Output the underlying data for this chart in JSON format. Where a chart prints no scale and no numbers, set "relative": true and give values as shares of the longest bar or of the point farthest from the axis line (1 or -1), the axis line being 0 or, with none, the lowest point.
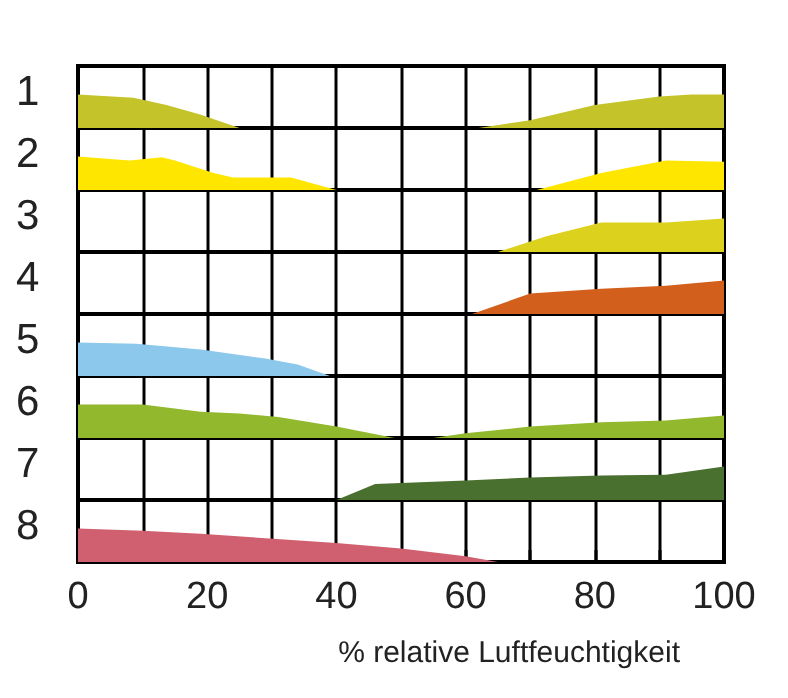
{
  "chart_data": [
    {
      "type": "area",
      "ylabel": "1",
      "relative": true,
      "color": "#c5c32a",
      "x": [
        0,
        8.6,
        13.7,
        18.9,
        25,
        62,
        70,
        80,
        90,
        95,
        100
      ],
      "values": [
        1,
        0.9,
        0.69,
        0.4,
        0,
        0,
        0.23,
        0.69,
        0.94,
        1,
        1
      ],
      "xlim": [
        0,
        100
      ],
      "xticks": [
        0,
        {
          "value": 10,
          "label": null
        },
        20,
        {
          "value": 30,
          "label": null
        },
        40,
        {
          "value": 50,
          "label": null
        },
        60,
        {
          "value": 70,
          "label": null
        },
        80,
        {
          "value": 90,
          "label": null
        },
        100
      ],
      "grid": "x",
      "tick_labels": false
    },
    {
      "type": "area",
      "ylabel": "2",
      "relative": true,
      "color": "#ffe600",
      "x": [
        0,
        8,
        13,
        15,
        21,
        24,
        33,
        40,
        71,
        81,
        91,
        100
      ],
      "values": [
        1,
        0.88,
        0.98,
        0.88,
        0.51,
        0.37,
        0.37,
        0,
        0,
        0.51,
        0.88,
        0.84
      ],
      "xlim": [
        0,
        100
      ],
      "xticks": [
        0,
        {
          "value": 10,
          "label": null
        },
        20,
        {
          "value": 30,
          "label": null
        },
        40,
        {
          "value": 50,
          "label": null
        },
        60,
        {
          "value": 70,
          "label": null
        },
        80,
        {
          "value": 90,
          "label": null
        },
        100
      ],
      "grid": "x",
      "tick_labels": false
    },
    {
      "type": "area",
      "ylabel": "3",
      "relative": true,
      "color": "#dcd21e",
      "x": [
        0,
        65,
        72.5,
        81,
        91,
        100
      ],
      "values": [
        0,
        0,
        0.47,
        0.88,
        0.88,
        1
      ],
      "xlim": [
        0,
        100
      ],
      "xticks": [
        0,
        {
          "value": 10,
          "label": null
        },
        20,
        {
          "value": 30,
          "label": null
        },
        40,
        {
          "value": 50,
          "label": null
        },
        60,
        {
          "value": 70,
          "label": null
        },
        80,
        {
          "value": 90,
          "label": null
        },
        100
      ],
      "grid": "x",
      "tick_labels": false
    },
    {
      "type": "area",
      "ylabel": "4",
      "relative": true,
      "color": "#d2601c",
      "x": [
        0,
        61,
        70,
        81,
        91,
        100
      ],
      "values": [
        0,
        0,
        0.61,
        0.75,
        0.84,
        1
      ],
      "xlim": [
        0,
        100
      ],
      "xticks": [
        0,
        {
          "value": 10,
          "label": null
        },
        20,
        {
          "value": 30,
          "label": null
        },
        40,
        {
          "value": 50,
          "label": null
        },
        60,
        {
          "value": 70,
          "label": null
        },
        80,
        {
          "value": 90,
          "label": null
        },
        100
      ],
      "grid": "x",
      "tick_labels": false
    },
    {
      "type": "area",
      "ylabel": "5",
      "relative": true,
      "color": "#8cc8ec",
      "x": [
        0,
        9,
        19,
        29,
        34,
        39,
        100
      ],
      "values": [
        1,
        0.96,
        0.79,
        0.52,
        0.34,
        0,
        0
      ],
      "xlim": [
        0,
        100
      ],
      "xticks": [
        0,
        {
          "value": 10,
          "label": null
        },
        20,
        {
          "value": 30,
          "label": null
        },
        40,
        {
          "value": 50,
          "label": null
        },
        60,
        {
          "value": 70,
          "label": null
        },
        80,
        {
          "value": 90,
          "label": null
        },
        100
      ],
      "grid": "x",
      "tick_labels": false
    },
    {
      "type": "area",
      "ylabel": "6",
      "relative": true,
      "color": "#92b82e",
      "x": [
        0,
        10,
        19,
        25,
        31,
        40,
        49,
        55,
        60,
        70,
        81,
        91,
        100
      ],
      "values": [
        1,
        1,
        0.78,
        0.73,
        0.63,
        0.34,
        0,
        0,
        0.14,
        0.34,
        0.47,
        0.52,
        0.67
      ],
      "xlim": [
        0,
        100
      ],
      "xticks": [
        0,
        {
          "value": 10,
          "label": null
        },
        20,
        {
          "value": 30,
          "label": null
        },
        40,
        {
          "value": 50,
          "label": null
        },
        60,
        {
          "value": 70,
          "label": null
        },
        80,
        {
          "value": 90,
          "label": null
        },
        100
      ],
      "grid": "x",
      "tick_labels": false
    },
    {
      "type": "area",
      "ylabel": "7",
      "relative": true,
      "color": "#4a7030",
      "x": [
        0,
        40,
        46,
        60,
        70,
        81,
        91,
        100
      ],
      "values": [
        0,
        0,
        0.48,
        0.58,
        0.67,
        0.73,
        0.75,
        1
      ],
      "xlim": [
        0,
        100
      ],
      "xticks": [
        0,
        {
          "value": 10,
          "label": null
        },
        20,
        {
          "value": 30,
          "label": null
        },
        40,
        {
          "value": 50,
          "label": null
        },
        60,
        {
          "value": 70,
          "label": null
        },
        80,
        {
          "value": 90,
          "label": null
        },
        100
      ],
      "grid": "x",
      "tick_labels": false
    },
    {
      "type": "area",
      "ylabel": "8",
      "xlabel": "% relative Luftfeuchtigkeit",
      "relative": true,
      "color": "#d06070",
      "x": [
        0,
        10,
        19,
        29,
        40,
        50,
        60,
        65,
        100
      ],
      "values": [
        1,
        0.93,
        0.84,
        0.71,
        0.57,
        0.4,
        0.17,
        0,
        0
      ],
      "xlim": [
        0,
        100
      ],
      "xticks": [
        0,
        {
          "value": 10,
          "label": null
        },
        20,
        {
          "value": 30,
          "label": null
        },
        40,
        {
          "value": 50,
          "label": null
        },
        60,
        {
          "value": 70,
          "label": null
        },
        80,
        {
          "value": 90,
          "label": null
        },
        100
      ],
      "grid": "x",
      "tick_labels": "x"
    }
  ]
}
